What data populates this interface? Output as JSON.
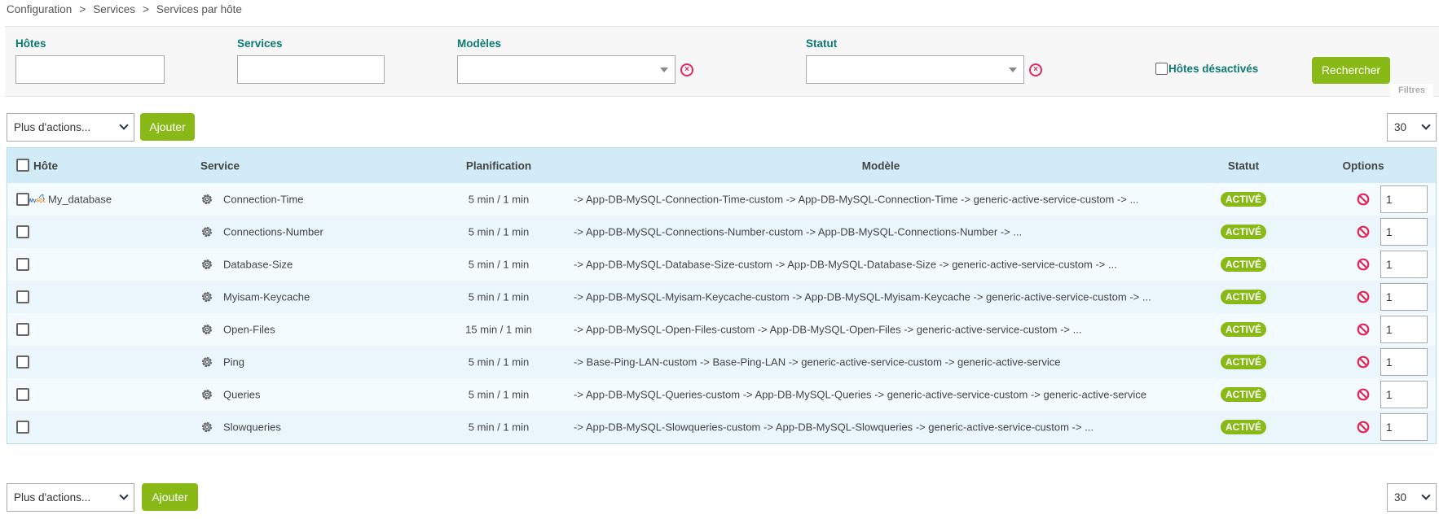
{
  "breadcrumb": [
    "Configuration",
    "Services",
    "Services par hôte"
  ],
  "filters": {
    "hosts_label": "Hôtes",
    "hosts_value": "",
    "services_label": "Services",
    "services_value": "",
    "templates_label": "Modèles",
    "templates_value": "",
    "status_label": "Statut",
    "status_value": "",
    "disabled_hosts_label": "Hôtes désactivés",
    "search_button": "Rechercher",
    "panel_label": "Filtres"
  },
  "actions": {
    "more_actions": "Plus d'actions...",
    "add_button": "Ajouter",
    "per_page": "30"
  },
  "table": {
    "headers": {
      "host": "Hôte",
      "service": "Service",
      "schedule": "Planification",
      "template": "Modèle",
      "status": "Statut",
      "options": "Options"
    },
    "rows": [
      {
        "host": "My_database",
        "service": "Connection-Time",
        "schedule": "5 min / 1 min",
        "template": "-> App-DB-MySQL-Connection-Time-custom -> App-DB-MySQL-Connection-Time -> generic-active-service-custom -> ...",
        "status": "ACTIVÉ",
        "option": "1"
      },
      {
        "host": "",
        "service": "Connections-Number",
        "schedule": "5 min / 1 min",
        "template": "-> App-DB-MySQL-Connections-Number-custom -> App-DB-MySQL-Connections-Number -> ...",
        "status": "ACTIVÉ",
        "option": "1"
      },
      {
        "host": "",
        "service": "Database-Size",
        "schedule": "5 min / 1 min",
        "template": "-> App-DB-MySQL-Database-Size-custom -> App-DB-MySQL-Database-Size -> generic-active-service-custom -> ...",
        "status": "ACTIVÉ",
        "option": "1"
      },
      {
        "host": "",
        "service": "Myisam-Keycache",
        "schedule": "5 min / 1 min",
        "template": "-> App-DB-MySQL-Myisam-Keycache-custom -> App-DB-MySQL-Myisam-Keycache -> generic-active-service-custom -> ...",
        "status": "ACTIVÉ",
        "option": "1"
      },
      {
        "host": "",
        "service": "Open-Files",
        "schedule": "15 min / 1 min",
        "template": "-> App-DB-MySQL-Open-Files-custom -> App-DB-MySQL-Open-Files -> generic-active-service-custom -> ...",
        "status": "ACTIVÉ",
        "option": "1"
      },
      {
        "host": "",
        "service": "Ping",
        "schedule": "5 min / 1 min",
        "template": "-> Base-Ping-LAN-custom -> Base-Ping-LAN -> generic-active-service-custom -> generic-active-service",
        "status": "ACTIVÉ",
        "option": "1"
      },
      {
        "host": "",
        "service": "Queries",
        "schedule": "5 min / 1 min",
        "template": "-> App-DB-MySQL-Queries-custom -> App-DB-MySQL-Queries -> generic-active-service-custom -> generic-active-service",
        "status": "ACTIVÉ",
        "option": "1"
      },
      {
        "host": "",
        "service": "Slowqueries",
        "schedule": "5 min / 1 min",
        "template": "-> App-DB-MySQL-Slowqueries-custom -> App-DB-MySQL-Slowqueries -> generic-active-service-custom -> ...",
        "status": "ACTIVÉ",
        "option": "1"
      }
    ]
  },
  "colors": {
    "accent": "#88b917",
    "label": "#0b7a75",
    "header_bg": "#d1ecf7",
    "danger": "#e0285a"
  }
}
